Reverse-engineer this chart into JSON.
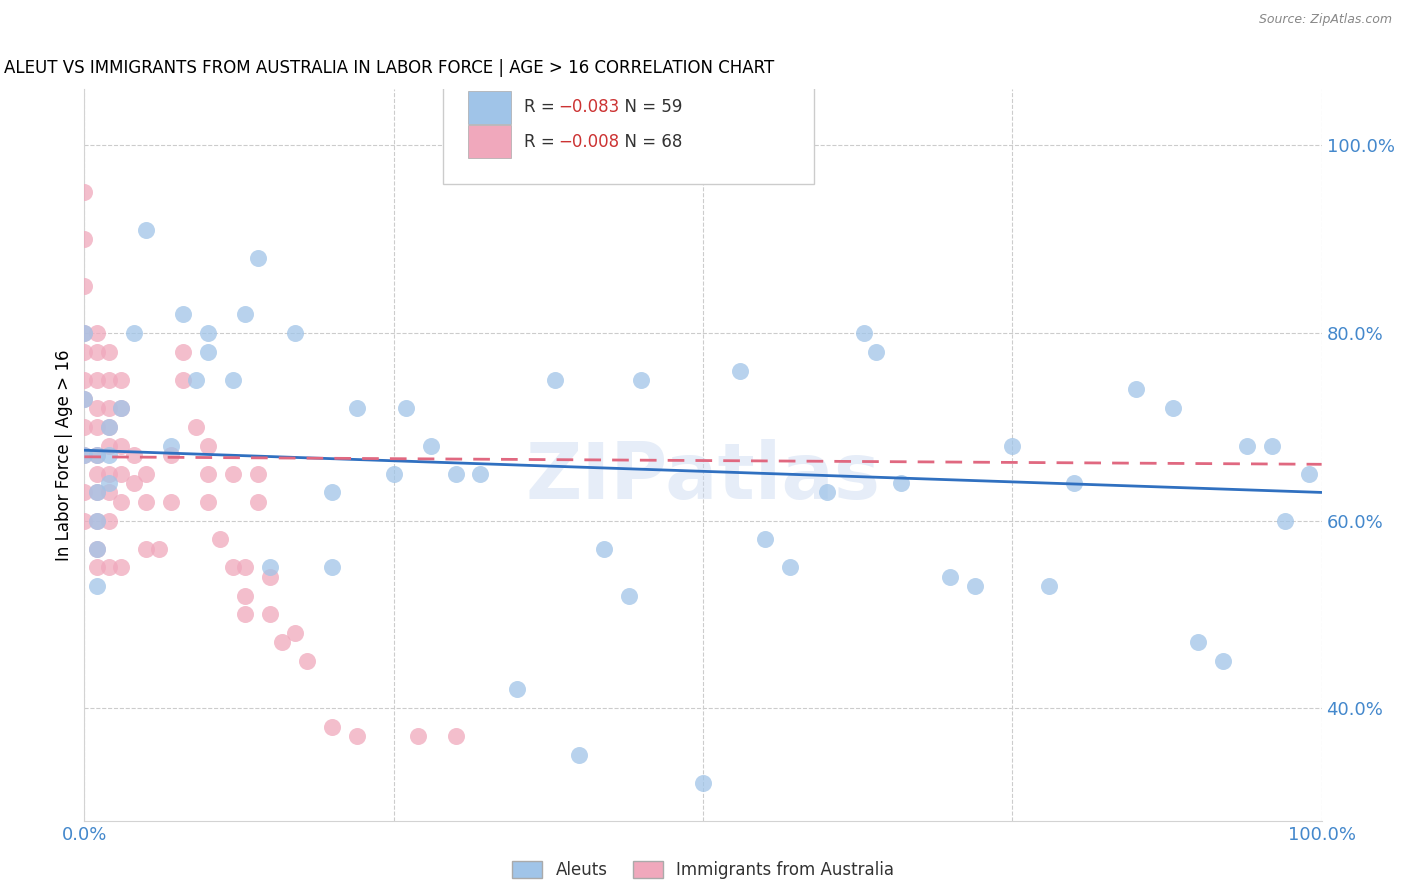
{
  "title": "ALEUT VS IMMIGRANTS FROM AUSTRALIA IN LABOR FORCE | AGE > 16 CORRELATION CHART",
  "source": "Source: ZipAtlas.com",
  "ylabel": "In Labor Force | Age > 16",
  "ytick_labels": [
    "40.0%",
    "60.0%",
    "80.0%",
    "100.0%"
  ],
  "ytick_values": [
    0.4,
    0.6,
    0.8,
    1.0
  ],
  "xlim": [
    0.0,
    1.0
  ],
  "ylim": [
    0.28,
    1.06
  ],
  "watermark": "ZIPatlas",
  "aleut_color": "#a0c4e8",
  "immigrant_color": "#f0a8bc",
  "aleut_line_color": "#3070c0",
  "immigrant_line_color": "#e06880",
  "grid_color": "#cccccc",
  "axis_color": "#4488cc",
  "background_color": "#ffffff",
  "R_aleut": -0.083,
  "N_aleut": 59,
  "R_immigrant": -0.008,
  "N_immigrant": 68,
  "aleut_label_R": "R = −0.083",
  "aleut_label_N": "N = 59",
  "immigrant_label_R": "R = −0.008",
  "immigrant_label_N": "N = 68",
  "aleuts_x": [
    0.0,
    0.0,
    0.0,
    0.01,
    0.01,
    0.01,
    0.01,
    0.01,
    0.02,
    0.02,
    0.02,
    0.03,
    0.04,
    0.05,
    0.07,
    0.08,
    0.09,
    0.1,
    0.1,
    0.12,
    0.13,
    0.14,
    0.15,
    0.17,
    0.2,
    0.2,
    0.22,
    0.25,
    0.26,
    0.28,
    0.3,
    0.32,
    0.35,
    0.38,
    0.4,
    0.42,
    0.44,
    0.45,
    0.5,
    0.53,
    0.55,
    0.57,
    0.6,
    0.63,
    0.64,
    0.66,
    0.7,
    0.72,
    0.75,
    0.78,
    0.8,
    0.85,
    0.88,
    0.9,
    0.92,
    0.94,
    0.96,
    0.97,
    0.99
  ],
  "aleuts_y": [
    0.8,
    0.73,
    0.67,
    0.67,
    0.63,
    0.6,
    0.57,
    0.53,
    0.7,
    0.67,
    0.64,
    0.72,
    0.8,
    0.91,
    0.68,
    0.82,
    0.75,
    0.8,
    0.78,
    0.75,
    0.82,
    0.88,
    0.55,
    0.8,
    0.63,
    0.55,
    0.72,
    0.65,
    0.72,
    0.68,
    0.65,
    0.65,
    0.42,
    0.75,
    0.35,
    0.57,
    0.52,
    0.75,
    0.32,
    0.76,
    0.58,
    0.55,
    0.63,
    0.8,
    0.78,
    0.64,
    0.54,
    0.53,
    0.68,
    0.53,
    0.64,
    0.74,
    0.72,
    0.47,
    0.45,
    0.68,
    0.68,
    0.6,
    0.65
  ],
  "immigrants_x": [
    0.0,
    0.0,
    0.0,
    0.0,
    0.0,
    0.0,
    0.0,
    0.0,
    0.0,
    0.0,
    0.0,
    0.01,
    0.01,
    0.01,
    0.01,
    0.01,
    0.01,
    0.01,
    0.01,
    0.01,
    0.01,
    0.01,
    0.02,
    0.02,
    0.02,
    0.02,
    0.02,
    0.02,
    0.02,
    0.02,
    0.02,
    0.03,
    0.03,
    0.03,
    0.03,
    0.03,
    0.03,
    0.04,
    0.04,
    0.05,
    0.05,
    0.05,
    0.06,
    0.07,
    0.07,
    0.08,
    0.08,
    0.09,
    0.1,
    0.1,
    0.1,
    0.11,
    0.12,
    0.12,
    0.13,
    0.13,
    0.13,
    0.14,
    0.14,
    0.15,
    0.15,
    0.16,
    0.17,
    0.18,
    0.2,
    0.22,
    0.27,
    0.3
  ],
  "immigrants_y": [
    0.95,
    0.9,
    0.85,
    0.8,
    0.78,
    0.75,
    0.73,
    0.7,
    0.67,
    0.63,
    0.6,
    0.8,
    0.78,
    0.75,
    0.72,
    0.7,
    0.67,
    0.65,
    0.63,
    0.6,
    0.57,
    0.55,
    0.78,
    0.75,
    0.72,
    0.7,
    0.68,
    0.65,
    0.63,
    0.6,
    0.55,
    0.75,
    0.72,
    0.68,
    0.65,
    0.62,
    0.55,
    0.67,
    0.64,
    0.65,
    0.62,
    0.57,
    0.57,
    0.67,
    0.62,
    0.78,
    0.75,
    0.7,
    0.68,
    0.65,
    0.62,
    0.58,
    0.65,
    0.55,
    0.55,
    0.52,
    0.5,
    0.65,
    0.62,
    0.54,
    0.5,
    0.47,
    0.48,
    0.45,
    0.38,
    0.37,
    0.37,
    0.37
  ]
}
